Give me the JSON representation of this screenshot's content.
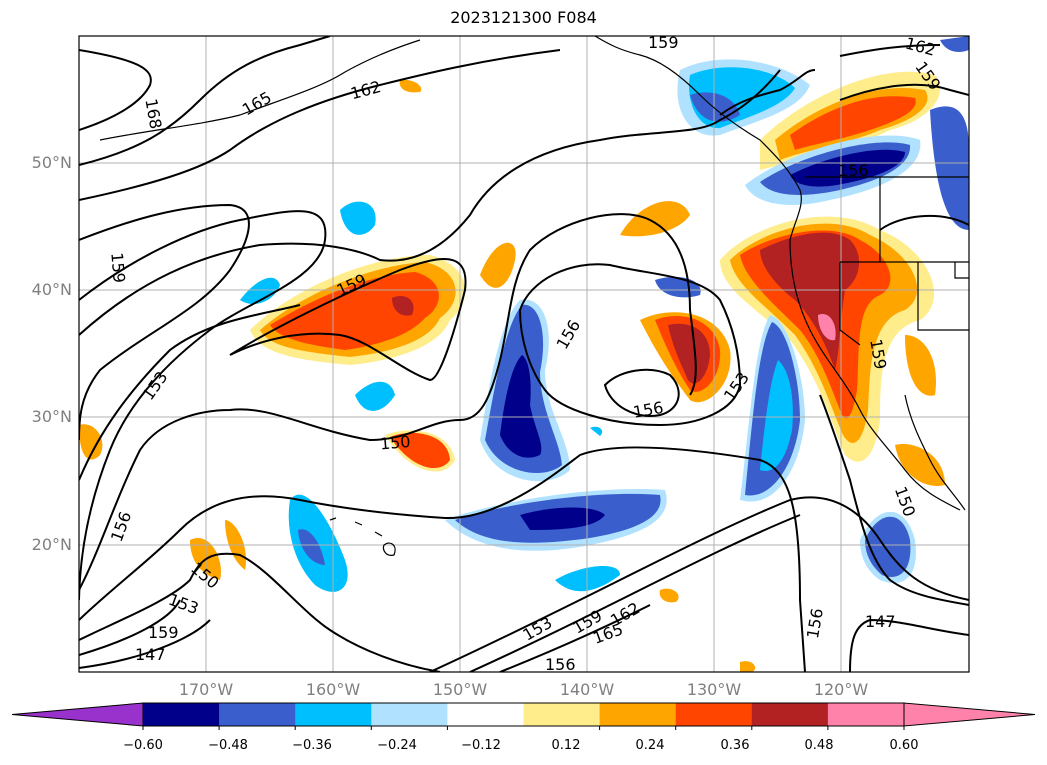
{
  "title": "2023121300 F084",
  "map": {
    "lat_labels": [
      "50°N",
      "40°N",
      "30°N",
      "20°N"
    ],
    "lon_labels": [
      "170°W",
      "160°W",
      "150°W",
      "140°W",
      "130°W",
      "120°W"
    ],
    "contour_labels": [
      "165",
      "162",
      "168",
      "159",
      "162",
      "159",
      "159",
      "156",
      "159",
      "153",
      "156",
      "150",
      "156",
      "159",
      "153",
      "150",
      "153",
      "156",
      "159",
      "147",
      "153",
      "159",
      "162",
      "165",
      "156",
      "156",
      "147",
      "150"
    ],
    "grid": true
  },
  "colorbar": {
    "tick_labels": [
      "−0.60",
      "−0.48",
      "−0.36",
      "−0.24",
      "−0.12",
      "0.12",
      "0.24",
      "0.36",
      "0.48",
      "0.60"
    ],
    "colors": {
      "under": "#9932cc",
      "bins": [
        "#00008b",
        "#3a5fcd",
        "#00bfff",
        "#b0e2ff",
        "#ffffff",
        "#ffec8b",
        "#ffa500",
        "#ff4500",
        "#b22222",
        "#ff82ab"
      ],
      "over": "#ff82ab"
    },
    "extend": "both"
  }
}
